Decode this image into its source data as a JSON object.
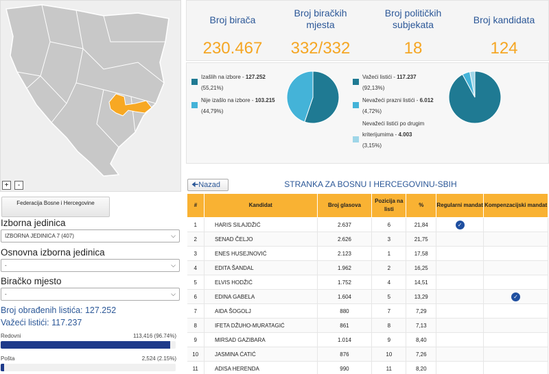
{
  "map": {
    "zoom_in": "+",
    "zoom_out": "-",
    "colors": {
      "land": "#c8c8c8",
      "border": "#ffffff",
      "highlight": "#f7a823",
      "background": "#efefef"
    }
  },
  "filters": {
    "entity_button": "Federacija Bosne i Hercegovine",
    "izborna_jedinica_label": "Izborna jedinica",
    "izborna_jedinica_value": "IZBORNA JEDINICA 7 (407)",
    "osnovna_label": "Osnovna izborna jedinica",
    "osnovna_value": "-",
    "biracko_label": "Biračko mjesto",
    "biracko_value": "-"
  },
  "processed": {
    "obradjeni": "Broj obrađenih listića: 127.252",
    "vazeci": "Važeći listići: 117.237",
    "bars": [
      {
        "label": "Redovni",
        "value": "113,416 (96.74%)",
        "fraction": 0.9674
      },
      {
        "label": "Pošta",
        "value": "2,524 (2.15%)",
        "fraction": 0.0215
      }
    ]
  },
  "stats": [
    {
      "title": "Broj birača",
      "value": "230.467"
    },
    {
      "title": "Broj biračkih mjesta",
      "value": "332/332"
    },
    {
      "title": "Broj političkih subjekata",
      "value": "18"
    },
    {
      "title": "Broj kandidata",
      "value": "124"
    }
  ],
  "turnout": {
    "items": [
      {
        "label": "Izašlih na izbore - ",
        "value": "127.252",
        "pct": "(55,21%)",
        "color": "#1f7a93",
        "fraction": 0.5521
      },
      {
        "label": "Nije izašlo na izbore - ",
        "value": "103.215",
        "pct": "(44,79%)",
        "color": "#44b3d8",
        "fraction": 0.4479
      }
    ]
  },
  "ballots": {
    "items": [
      {
        "label": "Važeći listići - ",
        "value": "117.237",
        "pct": "(92,13%)",
        "color": "#1f7a93",
        "fraction": 0.9213
      },
      {
        "label": "Nevažeći prazni listići - ",
        "value": "6.012",
        "pct": "(4,72%)",
        "color": "#44b3d8",
        "fraction": 0.0472
      },
      {
        "label_a": "Nevažeći listići po drugim",
        "label_b": "kriterijumima - ",
        "value": "4.003",
        "pct": "(3,15%)",
        "color": "#9fd6e8",
        "fraction": 0.0315
      }
    ]
  },
  "results": {
    "back_label": "Nazad",
    "party_name": "STRANKA ZA BOSNU I HERCEGOVINU-SBIH",
    "headers": {
      "num": "#",
      "kandidat": "Kandidat",
      "glasovi": "Broj glasova",
      "pozicija": "Pozicija na listi",
      "pct": "%",
      "regularni": "Regularni mandat",
      "kompenzacijski": "Kompenzacijski mandat"
    },
    "rows": [
      {
        "n": "1",
        "name": "HARIS SILAJDŽIĆ",
        "votes": "2.637",
        "pos": "6",
        "pct": "21,84",
        "regular": true,
        "comp": false
      },
      {
        "n": "2",
        "name": "SENAD ČELJO",
        "votes": "2.626",
        "pos": "3",
        "pct": "21,75",
        "regular": false,
        "comp": false
      },
      {
        "n": "3",
        "name": "ENES HUSEJNOVIĆ",
        "votes": "2.123",
        "pos": "1",
        "pct": "17,58",
        "regular": false,
        "comp": false
      },
      {
        "n": "4",
        "name": "EDITA ŠANDAL",
        "votes": "1.962",
        "pos": "2",
        "pct": "16,25",
        "regular": false,
        "comp": false
      },
      {
        "n": "5",
        "name": "ELVIS HODŽIĆ",
        "votes": "1.752",
        "pos": "4",
        "pct": "14,51",
        "regular": false,
        "comp": false
      },
      {
        "n": "6",
        "name": "EDINA GABELA",
        "votes": "1.604",
        "pos": "5",
        "pct": "13,29",
        "regular": false,
        "comp": true
      },
      {
        "n": "7",
        "name": "AIDA ŠOGOLJ",
        "votes": "880",
        "pos": "7",
        "pct": "7,29",
        "regular": false,
        "comp": false
      },
      {
        "n": "8",
        "name": "IFETA DŽUHO-MURATAGIĆ",
        "votes": "861",
        "pos": "8",
        "pct": "7,13",
        "regular": false,
        "comp": false
      },
      {
        "n": "9",
        "name": "MIRSAD GAZIBARA",
        "votes": "1.014",
        "pos": "9",
        "pct": "8,40",
        "regular": false,
        "comp": false
      },
      {
        "n": "10",
        "name": "JASMINA ĆATIĆ",
        "votes": "876",
        "pos": "10",
        "pct": "7,26",
        "regular": false,
        "comp": false
      },
      {
        "n": "11",
        "name": "ADISA HERENDA",
        "votes": "990",
        "pos": "11",
        "pct": "8,20",
        "regular": false,
        "comp": false
      }
    ]
  }
}
